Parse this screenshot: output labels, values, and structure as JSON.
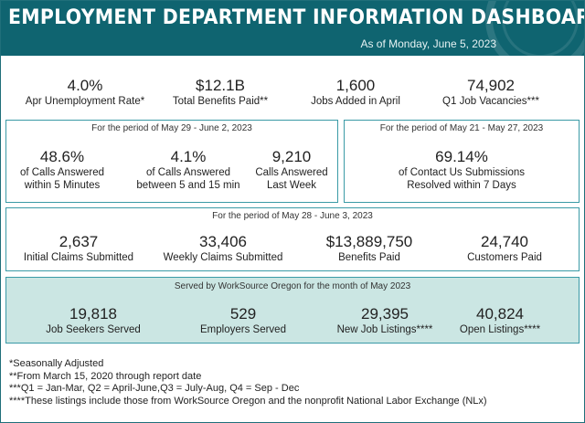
{
  "header": {
    "title": "EMPLOYMENT DEPARTMENT INFORMATION DASHBOARD",
    "date": "As of Monday, June 5, 2023"
  },
  "top_stats": [
    {
      "value": "4.0%",
      "label": "Apr Unemployment Rate*"
    },
    {
      "value": "$12.1B",
      "label": "Total Benefits Paid**"
    },
    {
      "value": "1,600",
      "label": "Jobs Added in April"
    },
    {
      "value": "74,902",
      "label": "Q1 Job Vacancies***"
    }
  ],
  "calls_box": {
    "caption": "For the period of May 29 - June 2, 2023",
    "stats": [
      {
        "value": "48.6%",
        "label1": "of Calls Answered",
        "label2": "within 5 Minutes"
      },
      {
        "value": "4.1%",
        "label1": "of Calls Answered",
        "label2": "between 5 and 15 min"
      },
      {
        "value": "9,210",
        "label1": "Calls Answered",
        "label2": "Last Week"
      }
    ]
  },
  "contact_box": {
    "caption": "For the period of May 21 - May 27, 2023",
    "value": "69.14%",
    "label1": "of Contact Us Submissions",
    "label2": "Resolved within 7 Days"
  },
  "claims_box": {
    "caption": "For the period of May 28 - June 3, 2023",
    "stats": [
      {
        "value": "2,637",
        "label": "Initial Claims Submitted"
      },
      {
        "value": "33,406",
        "label": "Weekly Claims Submitted"
      },
      {
        "value": "$13,889,750",
        "label": "Benefits Paid"
      },
      {
        "value": "24,740",
        "label": "Customers Paid"
      }
    ]
  },
  "worksource_box": {
    "caption": "Served by WorkSource Oregon for the month of May 2023",
    "stats": [
      {
        "value": "19,818",
        "label": "Job Seekers Served"
      },
      {
        "value": "529",
        "label": "Employers Served"
      },
      {
        "value": "29,395",
        "label": "New Job Listings****"
      },
      {
        "value": "40,824",
        "label": "Open Listings****"
      }
    ]
  },
  "notes": [
    "*Seasonally Adjusted",
    "**From March 15, 2020 through report date",
    "***Q1 = Jan-Mar, Q2 = April-June,Q3 = July-Aug, Q4 = Sep - Dec",
    "****These listings include those from WorkSource Oregon and the nonprofit National Labor Exchange (NLx)"
  ]
}
